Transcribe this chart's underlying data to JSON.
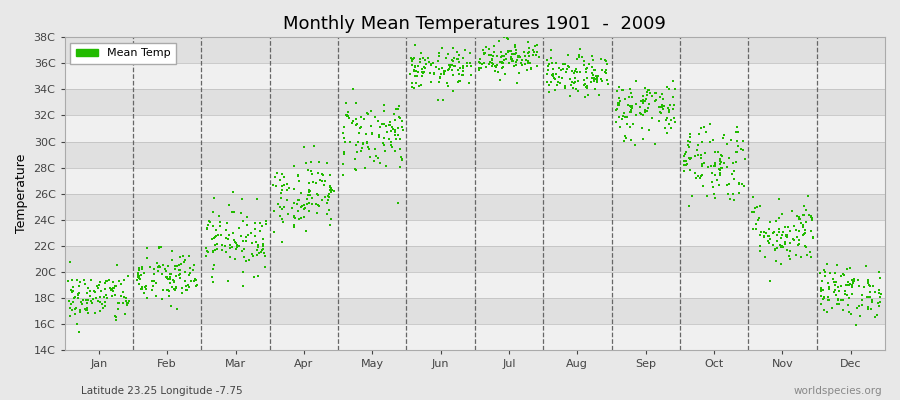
{
  "title": "Monthly Mean Temperatures 1901  -  2009",
  "ylabel": "Temperature",
  "subtitle": "Latitude 23.25 Longitude -7.75",
  "watermark": "worldspecies.org",
  "legend_label": "Mean Temp",
  "dot_color": "#22bb00",
  "bg_color": "#e8e8e8",
  "band_color_dark": "#e0e0e0",
  "band_color_light": "#f0f0f0",
  "ylim": [
    14,
    38
  ],
  "yticks": [
    14,
    16,
    18,
    20,
    22,
    24,
    26,
    28,
    30,
    32,
    34,
    36,
    38
  ],
  "ytick_labels": [
    "14C",
    "16C",
    "18C",
    "20C",
    "22C",
    "24C",
    "26C",
    "28C",
    "30C",
    "32C",
    "34C",
    "36C",
    "38C"
  ],
  "months": [
    "Jan",
    "Feb",
    "Mar",
    "Apr",
    "May",
    "Jun",
    "Jul",
    "Aug",
    "Sep",
    "Oct",
    "Nov",
    "Dec"
  ],
  "mean_temps": [
    18.0,
    19.5,
    22.5,
    26.0,
    30.5,
    35.5,
    36.5,
    35.0,
    32.5,
    28.5,
    23.0,
    18.5
  ],
  "std_temps": [
    1.0,
    1.1,
    1.3,
    1.4,
    1.5,
    0.8,
    0.7,
    0.8,
    1.2,
    1.6,
    1.3,
    1.0
  ],
  "num_years": 109,
  "seed": 42,
  "dot_size": 3,
  "title_fontsize": 13,
  "axis_label_fontsize": 9,
  "tick_fontsize": 8,
  "legend_fontsize": 8
}
